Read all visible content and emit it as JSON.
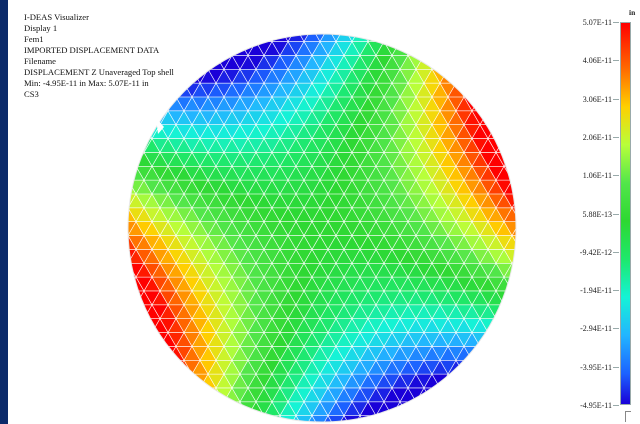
{
  "window": {
    "info_lines": [
      "I-DEAS Visualizer",
      "Display 1",
      "Fem1",
      "IMPORTED DISPLACEMENT DATA",
      "Filename",
      "DISPLACEMENT   Z   Unaveraged    Top shell",
      "Min: -4.95E-11 in    Max: 5.07E-11 in",
      "CS3"
    ]
  },
  "colorbar": {
    "units": "in",
    "ticks": [
      "5.07E-11",
      "4.06E-11",
      "3.06E-11",
      "2.06E-11",
      "1.06E-11",
      "5.88E-13",
      "-9.42E-12",
      "-1.94E-11",
      "-2.94E-11",
      "-3.95E-11",
      "-4.95E-11"
    ],
    "colors": [
      "#ff0000",
      "#ff6a00",
      "#ffd000",
      "#b8ff3a",
      "#52e64a",
      "#2ed832",
      "#1ee86c",
      "#15f3d6",
      "#22b5ff",
      "#1c62ff",
      "#1a00d8"
    ]
  },
  "model": {
    "shape": "circular plate mesh",
    "palette": [
      "#1a00d8",
      "#1c62ff",
      "#22b5ff",
      "#15f3d6",
      "#1ee86c",
      "#2ed832",
      "#52e64a",
      "#b8ff3a",
      "#ffd000",
      "#ff6a00",
      "#ff0000"
    ],
    "mesh_line_color": "#ffffff"
  }
}
